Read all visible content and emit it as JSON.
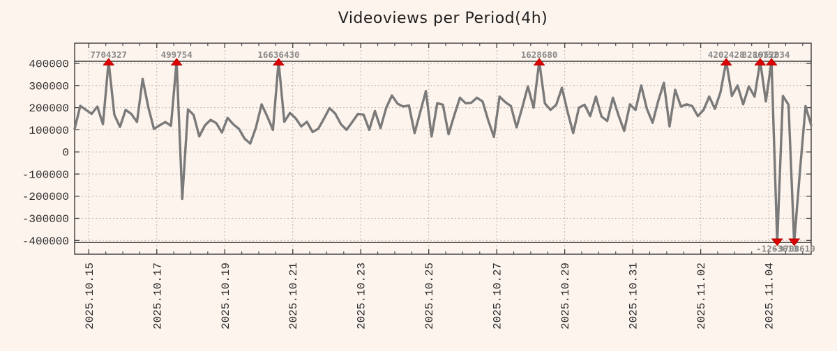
{
  "title": "Videoviews per Period(4h)",
  "colors": {
    "background": "#fdf4ee",
    "series_line": "#7a7a7a",
    "grid": "#bab3ab",
    "frame": "#3c3c3c",
    "clip_line": "#3c3c3c",
    "marker_red": "#dd0000",
    "marker_red_dark": "#b30000",
    "annotation_text": "#8a8a8a",
    "tick_text": "#2b2b2b"
  },
  "chart_data": {
    "type": "line",
    "title": "Videoviews per Period(4h)",
    "ylabel": "",
    "xlabel": "",
    "ylim": [
      -400000,
      400000
    ],
    "y_tick_step": 100000,
    "clip_limit": 400000,
    "grid": true,
    "y_tick_labels": [
      "400000",
      "300000",
      "200000",
      "100000",
      "0",
      "-100000",
      "-200000",
      "-300000",
      "-400000"
    ],
    "y_tick_values": [
      400000,
      300000,
      200000,
      100000,
      0,
      -100000,
      -200000,
      -300000,
      -400000
    ],
    "x_tick_labels": [
      "2025.10.15",
      "2025.10.17",
      "2025.10.19",
      "2025.10.21",
      "2025.10.23",
      "2025.10.25",
      "2025.10.27",
      "2025.10.29",
      "2025.10.31",
      "2025.11.02",
      "2025.11.04"
    ],
    "x_first_major_index": 2.5,
    "x_major_every_points": 12,
    "x_minor_every_points": 3,
    "points_per_day": 6,
    "values": [
      104000,
      208000,
      190000,
      172000,
      205000,
      125000,
      7704327,
      168000,
      113000,
      190000,
      172000,
      135000,
      330000,
      202000,
      104000,
      120000,
      135000,
      118000,
      499754,
      -212000,
      192000,
      167000,
      70000,
      120000,
      145000,
      130000,
      88000,
      154000,
      125000,
      104000,
      60000,
      38000,
      110000,
      215000,
      160000,
      100000,
      16636430,
      136000,
      176000,
      152000,
      115000,
      136000,
      90000,
      105000,
      150000,
      198000,
      173000,
      125000,
      100000,
      135000,
      172000,
      168000,
      100000,
      185000,
      108000,
      200000,
      255000,
      218000,
      205000,
      210000,
      85000,
      180000,
      275000,
      70000,
      220000,
      213000,
      80000,
      165000,
      245000,
      220000,
      222000,
      245000,
      228000,
      142000,
      68000,
      250000,
      225000,
      207000,
      111000,
      200000,
      296000,
      200000,
      1628680,
      219000,
      190000,
      213000,
      290000,
      182000,
      85000,
      200000,
      213000,
      162000,
      250000,
      160000,
      140000,
      245000,
      165000,
      95000,
      215000,
      190000,
      300000,
      195000,
      132000,
      230000,
      312000,
      115000,
      280000,
      205000,
      215000,
      207000,
      162000,
      190000,
      250000,
      195000,
      270000,
      4202428,
      253000,
      300000,
      215000,
      296000,
      250000,
      8286752,
      228000,
      1952034,
      -1263613,
      253000,
      213000,
      -3708610,
      -90000,
      207000,
      120000
    ],
    "clipped_points_top": [
      {
        "index": 6,
        "label": "7704327"
      },
      {
        "index": 18,
        "label": "499754"
      },
      {
        "index": 36,
        "label": "16636430"
      },
      {
        "index": 82,
        "label": "1628680"
      },
      {
        "index": 115,
        "label": "4202428"
      },
      {
        "index": 121,
        "label": "8286752"
      },
      {
        "index": 123,
        "label": "1952034"
      }
    ],
    "clipped_points_bottom": [
      {
        "index": 124,
        "label": "-1263613"
      },
      {
        "index": 127,
        "label": "-3708610"
      }
    ]
  }
}
